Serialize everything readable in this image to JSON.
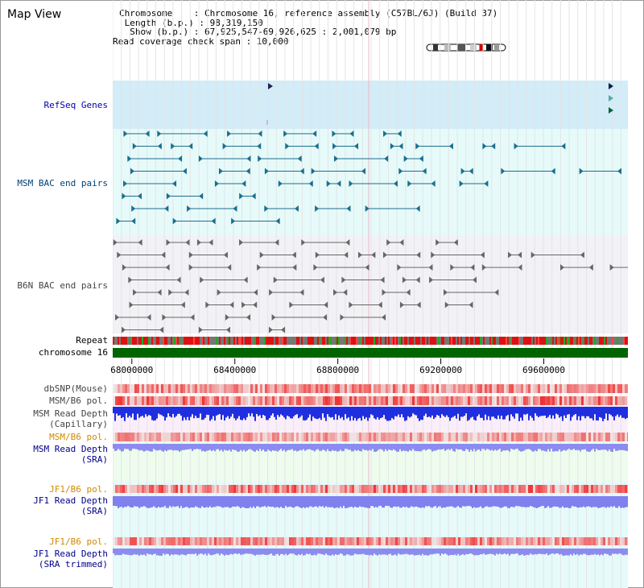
{
  "page": {
    "title": "Map View"
  },
  "info": {
    "chromosome_line": "Chromosome    : Chromosome 16, reference assembly (C57BL/6J) (Build 37)",
    "length_line": " Length (b.p.) : 98,319,150",
    "show_line": "  Show (b.p.) : 67,925,547-69,926,625 : 2,001,079 bp",
    "coverage_line": "Read coverage check span : 10,000"
  },
  "tracks": {
    "refseq": "RefSeq Genes",
    "msm_bac": "MSM BAC end pairs",
    "b6n_bac": "B6N BAC end pairs",
    "repeat": "Repeat",
    "chromosome": "chromosome 16",
    "dbsnp": "dbSNP(Mouse)",
    "msm_b6_pol": "MSM/B6 pol.",
    "msm_depth_cap_1": "MSM Read Depth",
    "msm_depth_cap_2": "(Capillary)",
    "msm_b6_pol_2": "MSM/B6 pol.",
    "msm_depth_sra_1": "MSM Read Depth",
    "msm_depth_sra_2": "(SRA)",
    "jf1_b6_pol": "JF1/B6 pol.",
    "jf1_depth_sra_1": "JF1 Read Depth",
    "jf1_depth_sra_2": "(SRA)",
    "jf1_b6_pol_2": "JF1/B6 pol.",
    "jf1_depth_trim_1": "JF1 Read Depth",
    "jf1_depth_trim_2": "(SRA trimmed)"
  },
  "axis": {
    "ticks": [
      "68000000",
      "68400000",
      "68800000",
      "69200000",
      "69600000"
    ],
    "tick_values": [
      68000000,
      68400000,
      68800000,
      69200000,
      69600000
    ],
    "start": 67925547,
    "end": 69926625
  },
  "colors": {
    "refseq_bg": "#d2ecf8",
    "msm_bg": "#e6fafa",
    "b6n_bg": "#f2f2f6",
    "chromosome": "#006400",
    "snp_red": "#e83030",
    "depth_blue": "#1f2fe0",
    "depth_light": "#8c8cf0"
  }
}
